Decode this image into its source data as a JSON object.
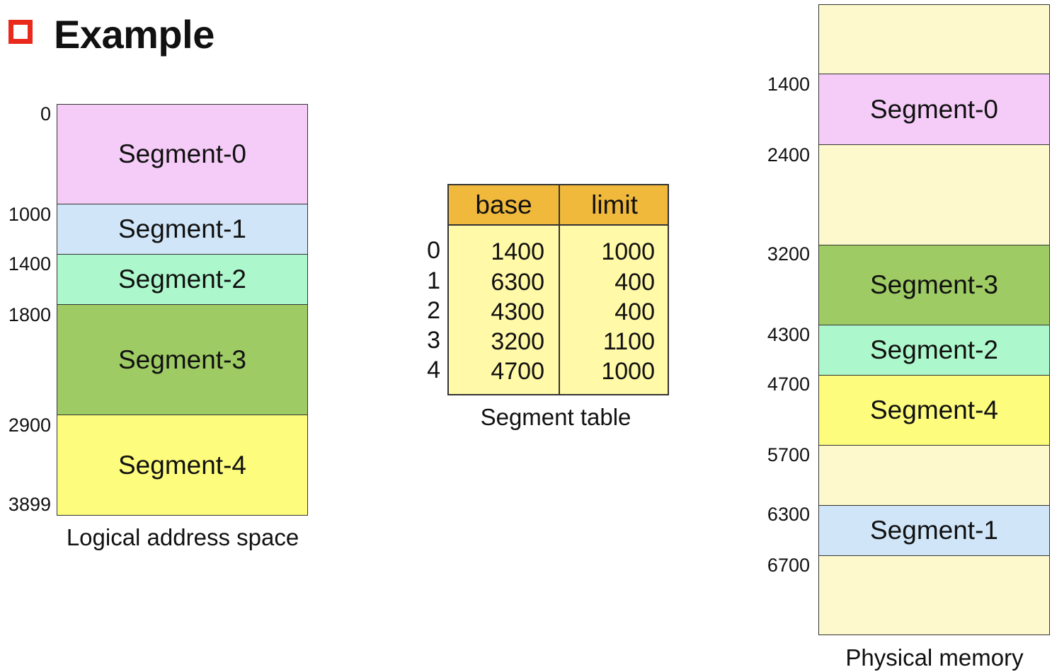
{
  "heading": "Example",
  "logical": {
    "caption": "Logical address space",
    "segments": [
      {
        "name": "Segment-0",
        "color": "#f5ccf8"
      },
      {
        "name": "Segment-1",
        "color": "#d0e6f8"
      },
      {
        "name": "Segment-2",
        "color": "#adf7cc"
      },
      {
        "name": "Segment-3",
        "color": "#9ecb63"
      },
      {
        "name": "Segment-4",
        "color": "#fdfc7c"
      }
    ],
    "addresses": [
      "0",
      "1000",
      "1400",
      "1800",
      "2900",
      "3899"
    ]
  },
  "table": {
    "caption": "Segment table",
    "headers": [
      "base",
      "limit"
    ],
    "rows": [
      {
        "index": "0",
        "base": "1400",
        "limit": "1000"
      },
      {
        "index": "1",
        "base": "6300",
        "limit": "400"
      },
      {
        "index": "2",
        "base": "4300",
        "limit": "400"
      },
      {
        "index": "3",
        "base": "3200",
        "limit": "1100"
      },
      {
        "index": "4",
        "base": "4700",
        "limit": "1000"
      }
    ],
    "header_color": "#f0b93b",
    "body_color": "#fff9a8"
  },
  "physical": {
    "caption": "Physical memory",
    "blocks": [
      {
        "name": "",
        "color": "#fdf9cc"
      },
      {
        "name": "Segment-0",
        "color": "#f5ccf8"
      },
      {
        "name": "",
        "color": "#fdf9cc"
      },
      {
        "name": "Segment-3",
        "color": "#9ecb63"
      },
      {
        "name": "Segment-2",
        "color": "#adf7cc"
      },
      {
        "name": "Segment-4",
        "color": "#fdfc7c"
      },
      {
        "name": "",
        "color": "#fdf9cc"
      },
      {
        "name": "Segment-1",
        "color": "#d0e6f8"
      },
      {
        "name": "",
        "color": "#fdf9cc"
      }
    ],
    "addresses": [
      "1400",
      "2400",
      "3200",
      "4300",
      "4700",
      "5700",
      "6300",
      "6700"
    ]
  },
  "accent_color": "#e8291c"
}
